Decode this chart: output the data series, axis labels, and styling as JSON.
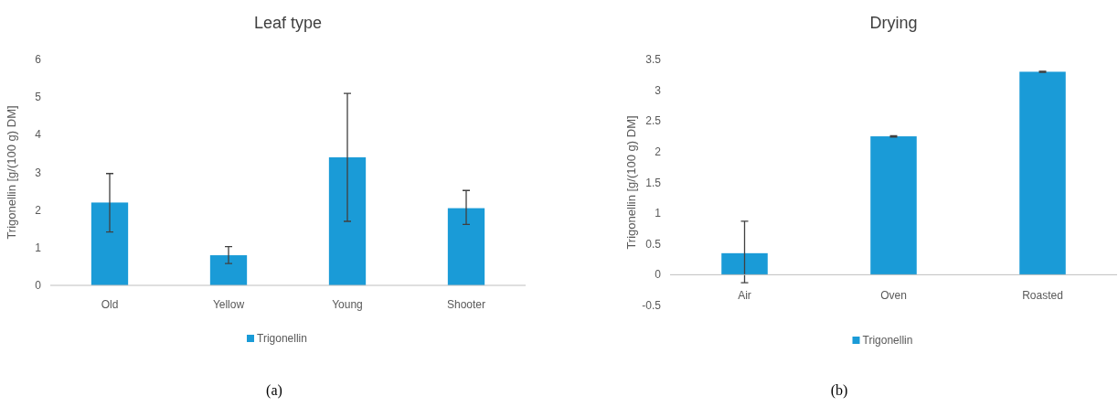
{
  "chart_data": [
    {
      "type": "bar",
      "title": "Leaf type",
      "ylabel": "Trigonellin [g/(100 g)  DM]",
      "categories": [
        "Old",
        "Yellow",
        "Young",
        "Shooter"
      ],
      "series": [
        {
          "name": "Trigonellin",
          "color": "#1a9bd7",
          "values": [
            2.2,
            0.8,
            3.4,
            2.05
          ],
          "errors": [
            [
              1.42,
              2.97
            ],
            [
              0.58,
              1.03
            ],
            [
              1.7,
              5.1
            ],
            [
              1.62,
              2.52
            ]
          ]
        }
      ],
      "ylim": [
        0,
        6
      ],
      "yticks": [
        0,
        1,
        2,
        3,
        4,
        5,
        6
      ],
      "legend": "bottom",
      "annotations": [
        "(a)"
      ]
    },
    {
      "type": "bar",
      "title": "Drying",
      "ylabel": "Trigonellin [g/(100 g)  DM]",
      "categories": [
        "Air",
        "Oven",
        "Roasted"
      ],
      "series": [
        {
          "name": "Trigonellin",
          "color": "#1a9bd7",
          "values": [
            0.35,
            2.25,
            3.3
          ],
          "errors": [
            [
              -0.13,
              0.87
            ],
            [
              2.24,
              2.26
            ],
            [
              3.29,
              3.31
            ]
          ]
        }
      ],
      "ylim": [
        -0.5,
        3.5
      ],
      "yticks": [
        -0.5,
        0,
        0.5,
        1,
        1.5,
        2,
        2.5,
        3,
        3.5
      ],
      "legend": "bottom",
      "annotations": [
        "(b)"
      ]
    }
  ]
}
